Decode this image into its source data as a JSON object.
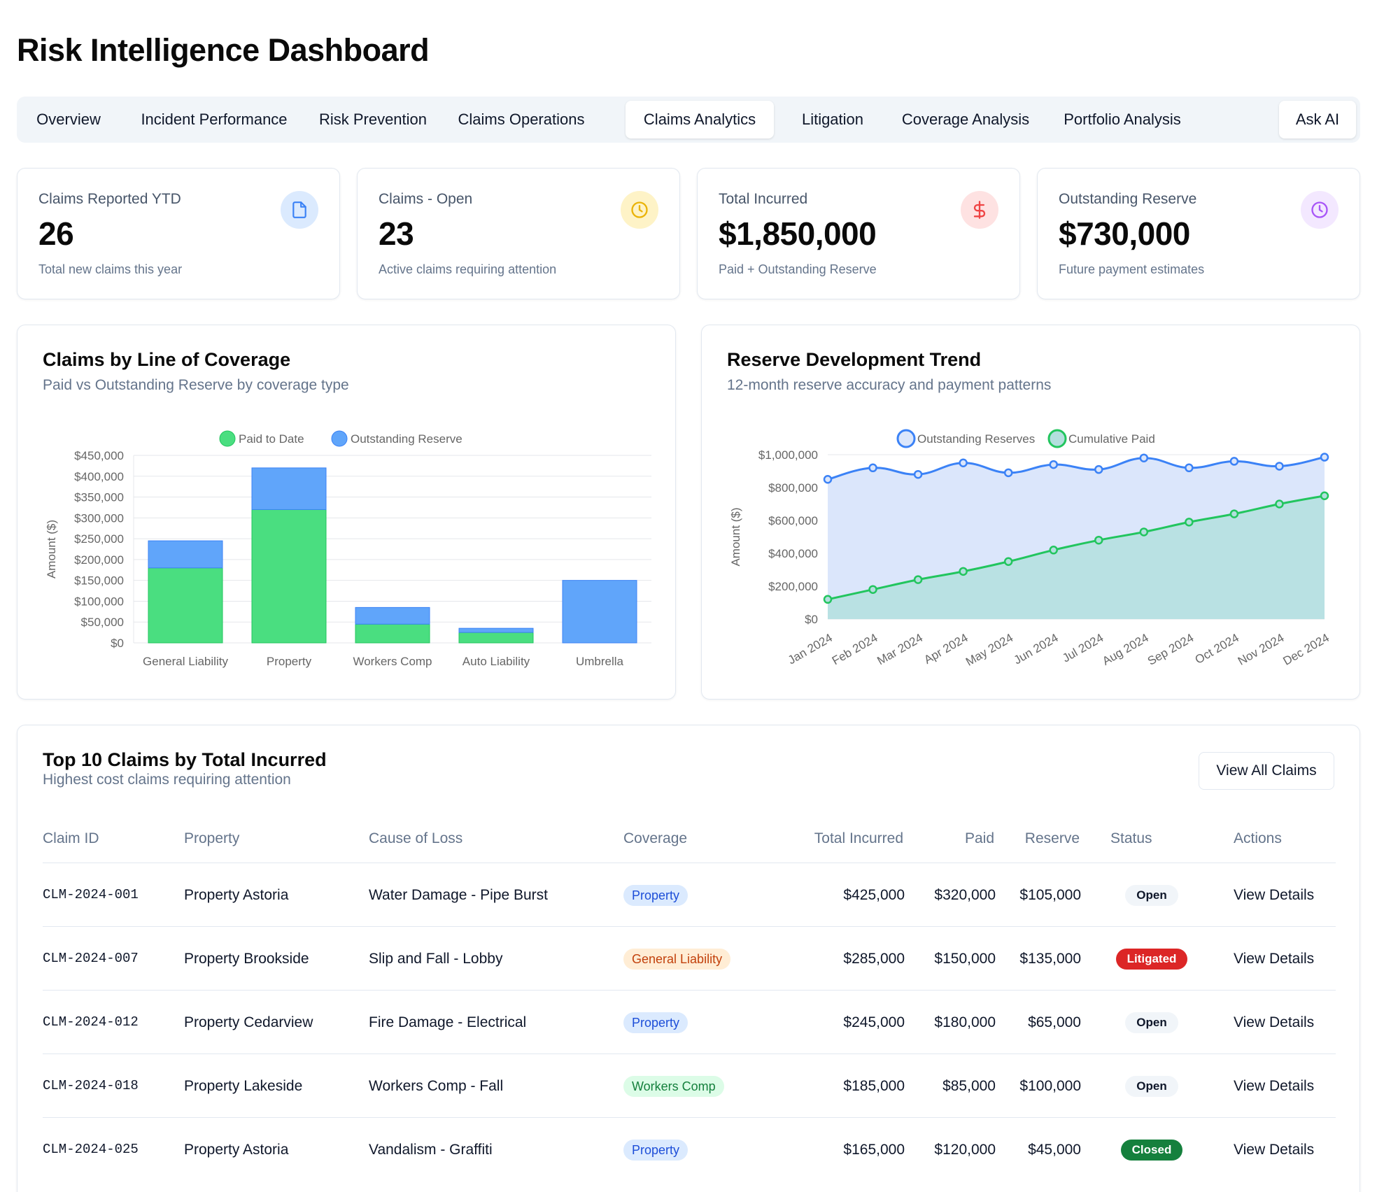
{
  "header": {
    "title": "Risk Intelligence Dashboard"
  },
  "tabs": [
    {
      "label": "Overview",
      "active": false
    },
    {
      "label": "Incident Performance",
      "active": false
    },
    {
      "label": "Risk Prevention",
      "active": false
    },
    {
      "label": "Claims Operations",
      "active": false
    },
    {
      "label": "Claims Analytics",
      "active": true
    },
    {
      "label": "Litigation",
      "active": false
    },
    {
      "label": "Coverage Analysis",
      "active": false
    },
    {
      "label": "Portfolio Analysis",
      "active": false
    }
  ],
  "ask_ai": {
    "label": "Ask AI"
  },
  "kpis": [
    {
      "label": "Claims Reported YTD",
      "value": "26",
      "sub": "Total new claims this year",
      "icon": "file-icon",
      "color": "#3b82f6",
      "bg": "#dbeafe"
    },
    {
      "label": "Claims - Open",
      "value": "23",
      "sub": "Active claims requiring attention",
      "icon": "clock-icon",
      "color": "#eab308",
      "bg": "#fef3c7"
    },
    {
      "label": "Total Incurred",
      "value": "$1,850,000",
      "sub": "Paid + Outstanding Reserve",
      "icon": "dollar-icon",
      "color": "#ef4444",
      "bg": "#fee2e2"
    },
    {
      "label": "Outstanding Reserve",
      "value": "$730,000",
      "sub": "Future payment estimates",
      "icon": "clock-icon",
      "color": "#a855f7",
      "bg": "#f3e8ff"
    }
  ],
  "chart_coverage": {
    "title": "Claims by Line of Coverage",
    "subtitle": "Paid vs Outstanding Reserve by coverage type"
  },
  "chart_reserve": {
    "title": "Reserve Development Trend",
    "subtitle": "12-month reserve accuracy and payment patterns"
  },
  "chart_data": [
    {
      "type": "bar",
      "stacked": true,
      "categories": [
        "General Liability",
        "Property",
        "Workers Comp",
        "Auto Liability",
        "Umbrella"
      ],
      "series": [
        {
          "name": "Paid to Date",
          "values": [
            180000,
            320000,
            45000,
            25000,
            0
          ],
          "color": "#4ade80",
          "border": "#22c55e"
        },
        {
          "name": "Outstanding Reserve",
          "values": [
            65000,
            100000,
            40000,
            10000,
            150000
          ],
          "color": "#60a5fa",
          "border": "#3b82f6"
        }
      ],
      "ylabel": "Amount ($)",
      "ylim": [
        0,
        450000
      ],
      "yticks": [
        "$0",
        "$50,000",
        "$100,000",
        "$150,000",
        "$200,000",
        "$250,000",
        "$300,000",
        "$350,000",
        "$400,000",
        "$450,000"
      ],
      "legend": "top-center",
      "grid": true
    },
    {
      "type": "area",
      "x": [
        "Jan 2024",
        "Feb 2024",
        "Mar 2024",
        "Apr 2024",
        "May 2024",
        "Jun 2024",
        "Jul 2024",
        "Aug 2024",
        "Sep 2024",
        "Oct 2024",
        "Nov 2024",
        "Dec 2024"
      ],
      "series": [
        {
          "name": "Outstanding Reserves",
          "values": [
            850000,
            920000,
            880000,
            950000,
            890000,
            940000,
            910000,
            980000,
            920000,
            960000,
            930000,
            985000
          ],
          "color": "#3b82f6",
          "fill": "#dbe6fb"
        },
        {
          "name": "Cumulative Paid",
          "values": [
            120000,
            180000,
            240000,
            290000,
            350000,
            420000,
            480000,
            530000,
            590000,
            640000,
            700000,
            750000
          ],
          "color": "#22c55e",
          "fill": "#b3dfde"
        }
      ],
      "ylabel": "Amount ($)",
      "ylim": [
        0,
        1000000
      ],
      "yticks": [
        "$0",
        "$200,000",
        "$400,000",
        "$600,000",
        "$800,000",
        "$1,000,000"
      ],
      "legend": "top-center",
      "grid": true
    }
  ],
  "table": {
    "title": "Top 10 Claims by Total Incurred",
    "subtitle": "Highest cost claims requiring attention",
    "view_all": "View All Claims",
    "headers": {
      "claim_id": "Claim ID",
      "property": "Property",
      "cause": "Cause of Loss",
      "coverage": "Coverage",
      "total": "Total Incurred",
      "paid": "Paid",
      "reserve": "Reserve",
      "status": "Status",
      "actions": "Actions"
    },
    "rows": [
      {
        "claim_id": "CLM-2024-001",
        "property": "Property Astoria",
        "cause": "Water Damage - Pipe Burst",
        "coverage": "Property",
        "total": "$425,000",
        "paid": "$320,000",
        "reserve": "$105,000",
        "status": "Open",
        "action": "View Details"
      },
      {
        "claim_id": "CLM-2024-007",
        "property": "Property Brookside",
        "cause": "Slip and Fall - Lobby",
        "coverage": "General Liability",
        "total": "$285,000",
        "paid": "$150,000",
        "reserve": "$135,000",
        "status": "Litigated",
        "action": "View Details"
      },
      {
        "claim_id": "CLM-2024-012",
        "property": "Property Cedarview",
        "cause": "Fire Damage - Electrical",
        "coverage": "Property",
        "total": "$245,000",
        "paid": "$180,000",
        "reserve": "$65,000",
        "status": "Open",
        "action": "View Details"
      },
      {
        "claim_id": "CLM-2024-018",
        "property": "Property Lakeside",
        "cause": "Workers Comp - Fall",
        "coverage": "Workers Comp",
        "total": "$185,000",
        "paid": "$85,000",
        "reserve": "$100,000",
        "status": "Open",
        "action": "View Details"
      },
      {
        "claim_id": "CLM-2024-025",
        "property": "Property Astoria",
        "cause": "Vandalism - Graffiti",
        "coverage": "Property",
        "total": "$165,000",
        "paid": "$120,000",
        "reserve": "$45,000",
        "status": "Closed",
        "action": "View Details"
      }
    ]
  }
}
